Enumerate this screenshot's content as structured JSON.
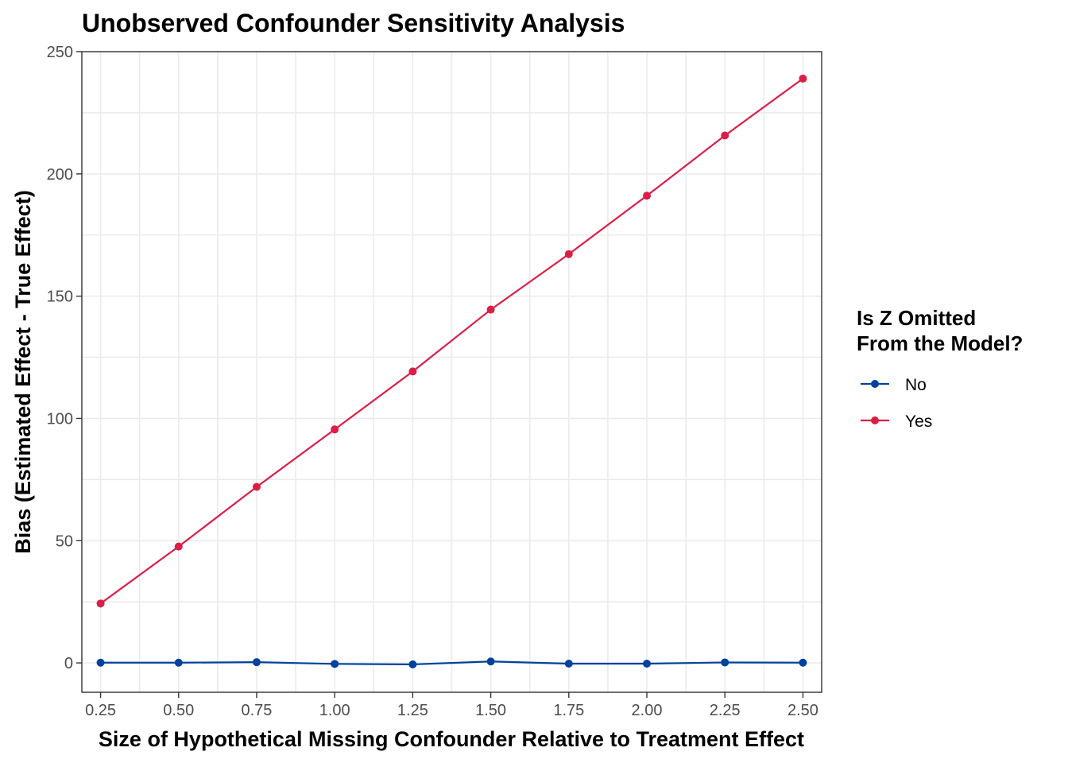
{
  "chart_data": {
    "type": "line",
    "title": "Unobserved Confounder Sensitivity Analysis",
    "xlabel": "Size of Hypothetical Missing Confounder Relative to Treatment Effect",
    "ylabel": "Bias (Estimated Effect - True Effect)",
    "xlim": [
      0.19,
      2.56
    ],
    "ylim": [
      -12,
      250
    ],
    "x_ticks": [
      0.25,
      0.5,
      0.75,
      1.0,
      1.25,
      1.5,
      1.75,
      2.0,
      2.25,
      2.5
    ],
    "x_tick_labels": [
      "0.25",
      "0.50",
      "0.75",
      "1.00",
      "1.25",
      "1.50",
      "1.75",
      "2.00",
      "2.25",
      "2.50"
    ],
    "y_ticks": [
      0,
      50,
      100,
      150,
      200,
      250
    ],
    "y_tick_labels": [
      "0",
      "50",
      "100",
      "150",
      "200",
      "250"
    ],
    "grid": true,
    "legend": {
      "title_lines": [
        "Is Z Omitted",
        "From the Model?"
      ],
      "position": "right"
    },
    "x": [
      0.25,
      0.5,
      0.75,
      1.0,
      1.25,
      1.5,
      1.75,
      2.0,
      2.25,
      2.5
    ],
    "series": [
      {
        "name": "No",
        "color": "#00429d",
        "values": [
          0.1,
          0.1,
          0.3,
          -0.4,
          -0.6,
          0.6,
          -0.3,
          -0.3,
          0.2,
          0.1
        ]
      },
      {
        "name": "Yes",
        "color": "#dc1e46",
        "values": [
          24.3,
          47.6,
          72.0,
          95.5,
          119.2,
          144.5,
          167.2,
          191.1,
          215.7,
          239.0
        ]
      }
    ]
  }
}
